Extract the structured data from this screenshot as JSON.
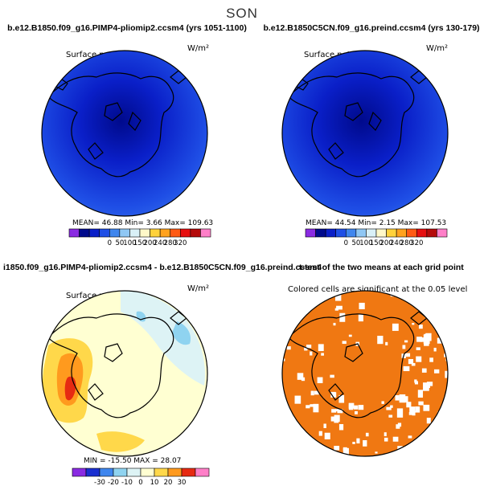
{
  "figure": {
    "title": "SON"
  },
  "chart_data": [
    {
      "type": "heatmap",
      "projection": "polar-stereographic",
      "title": "b.e12.B1850.f09_g16.PIMP4-pliomip2.ccsm4 (yrs 1051-1100)",
      "subtitle": "Surface net SW flux",
      "units": "W/m²",
      "stats_text": "MEAN=   46.88   Min=      3.66   Max= 109.63",
      "stats": {
        "mean": 46.88,
        "min": 3.66,
        "max": 109.63
      },
      "colorbar": {
        "levels": [
          0,
          50,
          100,
          150,
          200,
          240,
          280,
          320
        ],
        "tick_labels": [
          "0",
          "50",
          "100",
          "150",
          "200",
          "240",
          "280",
          "320"
        ],
        "colors": [
          "#8a2be2",
          "#000a8c",
          "#0a1fc8",
          "#1f4fe6",
          "#3f86ee",
          "#8fc7f4",
          "#d9f0f7",
          "#fff8c8",
          "#ffd23c",
          "#ffa21e",
          "#ff5a14",
          "#e60f10",
          "#b40a0a",
          "#ff7fc8"
        ]
      }
    },
    {
      "type": "heatmap",
      "projection": "polar-stereographic",
      "title": "b.e12.B1850C5CN.f09_g16.preind.ccsm4 (yrs 130-179)",
      "subtitle": "Surface net SW flux",
      "units": "W/m²",
      "stats_text": "MEAN=   44.54   Min=      2.15   Max= 107.53",
      "stats": {
        "mean": 44.54,
        "min": 2.15,
        "max": 107.53
      },
      "colorbar": {
        "levels": [
          0,
          50,
          100,
          150,
          200,
          240,
          280,
          320
        ],
        "tick_labels": [
          "0",
          "50",
          "100",
          "150",
          "200",
          "240",
          "280",
          "320"
        ],
        "colors": [
          "#8a2be2",
          "#000a8c",
          "#0a1fc8",
          "#1f4fe6",
          "#3f86ee",
          "#8fc7f4",
          "#d9f0f7",
          "#fff8c8",
          "#ffd23c",
          "#ffa21e",
          "#ff5a14",
          "#e60f10",
          "#b40a0a",
          "#ff7fc8"
        ]
      }
    },
    {
      "type": "heatmap",
      "projection": "polar-stereographic",
      "title": "i1850.f09_g16.PIMP4-pliomip2.ccsm4 - b.e12.B1850C5CN.f09_g16.preind.ccsm4",
      "subtitle": "Surface net SW flux",
      "units": "W/m²",
      "stats_text": "MIN = -15.50  MAX =  28.07",
      "stats": {
        "min": -15.5,
        "max": 28.07
      },
      "colorbar": {
        "levels": [
          -30,
          -20,
          -10,
          0,
          10,
          20,
          30
        ],
        "tick_labels": [
          "-30",
          "-20",
          "-10",
          "0",
          "10",
          "20",
          "30"
        ],
        "colors": [
          "#8a2be2",
          "#1a2fd0",
          "#3f86ee",
          "#8fd3f0",
          "#ddf3f5",
          "#ffffd2",
          "#ffd84a",
          "#ff9a1e",
          "#e62a12",
          "#ff7fc8"
        ]
      }
    },
    {
      "type": "heatmap",
      "projection": "polar-stereographic",
      "title": "t-test of the two means at each grid point",
      "subtitle": "Colored cells are significant at the 0.05 level",
      "significance_level": 0.05,
      "colors": [
        "#f07812"
      ]
    }
  ]
}
